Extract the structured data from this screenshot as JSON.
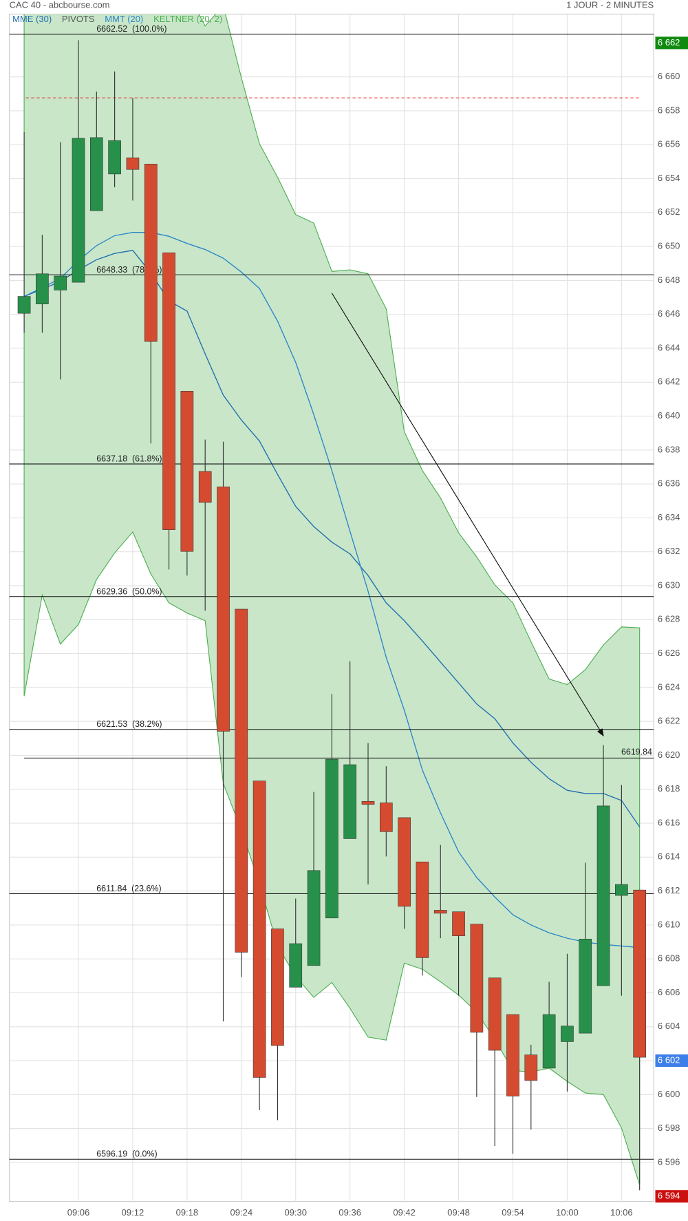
{
  "chart_data": {
    "type": "candlestick",
    "title": "CAC 40 - abcbourse.com",
    "subtitle": "1 JOUR - 2 MINUTES",
    "categories": [
      null,
      null,
      null,
      "09:06",
      null,
      null,
      "09:12",
      null,
      null,
      "09:18",
      null,
      null,
      "09:24",
      null,
      null,
      "09:30",
      null,
      null,
      "09:36",
      null,
      null,
      "09:42",
      null,
      null,
      "09:48",
      null,
      null,
      "09:54",
      null,
      null,
      "10:00",
      null,
      null,
      "10:06",
      null
    ],
    "open": [
      6646.06,
      6646.61,
      6647.43,
      6647.89,
      6652.11,
      6654.27,
      6655.23,
      6654.86,
      6649.63,
      6641.47,
      6636.74,
      6635.83,
      6628.62,
      6618.49,
      6609.77,
      6606.33,
      6607.61,
      6610.41,
      6615.09,
      6617.29,
      6617.2,
      6616.33,
      6613.72,
      6610.87,
      6610.78,
      6610.05,
      6606.88,
      6604.72,
      6602.34,
      6601.56,
      6603.12,
      6603.62,
      6606.42,
      6611.74,
      6612.06
    ],
    "high": [
      6656.74,
      6650.69,
      6656.15,
      6662.16,
      6659.13,
      6660.32,
      6658.76,
      6654.86,
      6649.63,
      6641.47,
      6638.62,
      6638.49,
      6628.62,
      6618.49,
      6609.77,
      6611.56,
      6617.84,
      6623.62,
      6625.55,
      6620.73,
      6619.36,
      6616.33,
      6613.72,
      6614.72,
      6610.78,
      6610.05,
      6606.88,
      6604.72,
      6602.94,
      6606.65,
      6608.3,
      6613.67,
      6620.6,
      6618.26,
      6612.06
    ],
    "low": [
      6644.91,
      6644.91,
      6642.16,
      6647.89,
      6652.11,
      6653.49,
      6652.71,
      6638.39,
      6630.96,
      6630.6,
      6628.53,
      6604.31,
      6606.93,
      6599.08,
      6598.49,
      6606.33,
      6607.61,
      6610.41,
      6615.09,
      6612.39,
      6614.04,
      6609.77,
      6607.02,
      6609.22,
      6605.83,
      6599.86,
      6596.97,
      6596.51,
      6597.94,
      6601.56,
      6600.18,
      6603.62,
      6606.42,
      6605.83,
      6594.36
    ],
    "close": [
      6647.06,
      6648.39,
      6648.26,
      6656.38,
      6656.42,
      6656.24,
      6654.54,
      6644.4,
      6633.3,
      6632.02,
      6634.91,
      6621.42,
      6608.39,
      6601.01,
      6602.89,
      6608.9,
      6613.21,
      6619.77,
      6619.45,
      6617.11,
      6615.5,
      6611.1,
      6608.07,
      6610.69,
      6609.36,
      6603.67,
      6602.61,
      6599.91,
      6600.83,
      6604.72,
      6604.04,
      6609.17,
      6617.02,
      6612.39,
      6602.2
    ],
    "up_color": "#27904a",
    "down_color": "#d44b30",
    "series": [
      {
        "name": "MME (30)",
        "color": "#1f6fae",
        "values": [
          6647.06,
          6647.48,
          6647.94,
          6648.62,
          6649.22,
          6649.59,
          6649.77,
          6648.44,
          6646.79,
          6646.19,
          6643.67,
          6641.24,
          6639.77,
          6638.53,
          6636.56,
          6634.68,
          6633.49,
          6632.57,
          6631.88,
          6630.6,
          6628.99,
          6627.94,
          6626.74,
          6625.5,
          6624.27,
          6623.03,
          6622.16,
          6620.73,
          6619.59,
          6618.62,
          6617.94,
          6617.75,
          6617.75,
          6617.34,
          6615.78
        ]
      },
      {
        "name": "MMT (20)",
        "color": "#2a86c8",
        "values": [
          6647.06,
          6647.57,
          6648.12,
          6649.17,
          6650.05,
          6650.64,
          6650.83,
          6650.83,
          6650.6,
          6650.18,
          6649.82,
          6649.31,
          6648.49,
          6647.52,
          6645.6,
          6643.17,
          6640.09,
          6636.79,
          6633.21,
          6629.68,
          6625.78,
          6622.66,
          6619.13,
          6616.61,
          6614.31,
          6612.8,
          6611.65,
          6610.6,
          6610,
          6609.54,
          6609.22,
          6608.99,
          6608.85,
          6608.76,
          6608.67
        ]
      }
    ],
    "pivots": {
      "name": "PIVOTS",
      "color": "#e53935",
      "value": 6658.76
    },
    "keltner": {
      "name": "KELTNER (20, 2)",
      "color": "#4caf50",
      "fill": "#c9e6c9",
      "upper": [
        6665,
        6665,
        6665,
        6665,
        6665,
        6665,
        6665,
        6665,
        6665,
        6665,
        6663.0,
        6664.2,
        6659.95,
        6656.06,
        6654.08,
        6651.88,
        6651.38,
        6648.53,
        6648.62,
        6648.39,
        6646.33,
        6639.08,
        6636.79,
        6635.18,
        6633.12,
        6631.7,
        6630.05,
        6628.99,
        6626.7,
        6624.5,
        6624.17,
        6625.05,
        6626.51,
        6627.57,
        6627.52
      ],
      "lower": [
        6623.49,
        6629.45,
        6626.56,
        6627.71,
        6630.37,
        6631.93,
        6633.17,
        6630.69,
        6628.99,
        6628.39,
        6627.94,
        6618.35,
        6615.6,
        6612.43,
        6608.76,
        6606.97,
        6605.73,
        6606.61,
        6605.09,
        6603.39,
        6603.21,
        6607.75,
        6607.39,
        6606.65,
        6605.87,
        6604.86,
        6603.26,
        6601.42,
        6601.33,
        6601.56,
        6600.78,
        6600.09,
        6600,
        6598.03,
        6594.68
      ]
    },
    "fib_levels": [
      {
        "price": 6662.52,
        "ratio": "(100.0%)"
      },
      {
        "price": 6648.33,
        "ratio": "(78.6%)"
      },
      {
        "price": 6637.18,
        "ratio": "(61.8%)"
      },
      {
        "price": 6629.36,
        "ratio": "(50.0%)"
      },
      {
        "price": 6621.53,
        "ratio": "(38.2%)"
      },
      {
        "price": 6611.84,
        "ratio": "(23.6%)"
      },
      {
        "price": 6596.19,
        "ratio": "(0.0%)"
      }
    ],
    "price_line": {
      "value": 6619.84
    },
    "trend_arrow": {
      "x": [
        17,
        32
      ],
      "y": [
        6647.25,
        6621.15
      ]
    },
    "price_markers": [
      {
        "value": 6662,
        "label": "6 662",
        "color": "#0f8a0f"
      },
      {
        "value": 6602,
        "label": "6 602",
        "color": "#3d7ee8"
      },
      {
        "value": 6594,
        "label": "6 594",
        "color": "#cc1010"
      }
    ],
    "ylim": [
      6593.7,
      6663.7
    ],
    "yticks": [
      {
        "value": 6596,
        "label": "6 596"
      },
      {
        "value": 6598,
        "label": "6 598"
      },
      {
        "value": 6600,
        "label": "6 600"
      },
      {
        "value": 6602,
        "label": "6 602"
      },
      {
        "value": 6604,
        "label": "6 604"
      },
      {
        "value": 6606,
        "label": "6 606"
      },
      {
        "value": 6608,
        "label": "6 608"
      },
      {
        "value": 6610,
        "label": "6 610"
      },
      {
        "value": 6612,
        "label": "6 612"
      },
      {
        "value": 6614,
        "label": "6 614"
      },
      {
        "value": 6616,
        "label": "6 616"
      },
      {
        "value": 6618,
        "label": "6 618"
      },
      {
        "value": 6620,
        "label": "6 620"
      },
      {
        "value": 6622,
        "label": "6 622"
      },
      {
        "value": 6624,
        "label": "6 624"
      },
      {
        "value": 6626,
        "label": "6 626"
      },
      {
        "value": 6628,
        "label": "6 628"
      },
      {
        "value": 6630,
        "label": "6 630"
      },
      {
        "value": 6632,
        "label": "6 632"
      },
      {
        "value": 6634,
        "label": "6 634"
      },
      {
        "value": 6636,
        "label": "6 636"
      },
      {
        "value": 6638,
        "label": "6 638"
      },
      {
        "value": 6640,
        "label": "6 640"
      },
      {
        "value": 6642,
        "label": "6 642"
      },
      {
        "value": 6644,
        "label": "6 644"
      },
      {
        "value": 6646,
        "label": "6 646"
      },
      {
        "value": 6648,
        "label": "6 648"
      },
      {
        "value": 6650,
        "label": "6 650"
      },
      {
        "value": 6652,
        "label": "6 652"
      },
      {
        "value": 6654,
        "label": "6 654"
      },
      {
        "value": 6656,
        "label": "6 656"
      },
      {
        "value": 6658,
        "label": "6 658"
      },
      {
        "value": 6660,
        "label": "6 660"
      }
    ],
    "grid": true
  }
}
